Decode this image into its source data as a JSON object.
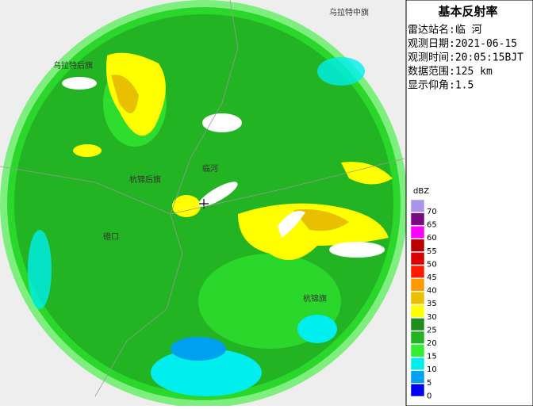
{
  "panel": {
    "title": "基本反射率",
    "lines": [
      "雷达站名:临 河",
      "观测日期:2021-06-15",
      "观测时间:20:05:15BJT",
      "数据范围:125 km",
      "显示仰角:1.5"
    ]
  },
  "legend": {
    "unit": "dBZ",
    "items": [
      {
        "label": "70",
        "color": "#ab94e8"
      },
      {
        "label": "65",
        "color": "#7a0a84"
      },
      {
        "label": "60",
        "color": "#ff00ff"
      },
      {
        "label": "55",
        "color": "#b80000"
      },
      {
        "label": "50",
        "color": "#d80000"
      },
      {
        "label": "45",
        "color": "#ff1a00"
      },
      {
        "label": "40",
        "color": "#ff9a00"
      },
      {
        "label": "35",
        "color": "#e8c000"
      },
      {
        "label": "30",
        "color": "#ffff00"
      },
      {
        "label": "25",
        "color": "#1e8c1e"
      },
      {
        "label": "20",
        "color": "#22b422"
      },
      {
        "label": "15",
        "color": "#33ee33"
      },
      {
        "label": "10",
        "color": "#00eeee"
      },
      {
        "label": "5",
        "color": "#00a0f0"
      },
      {
        "label": "0",
        "color": "#0000f0"
      }
    ]
  },
  "places": [
    "乌拉特中旗",
    "乌拉特后旗",
    "杭锦后旗",
    "磴口",
    "杭锦旗",
    "临河"
  ]
}
